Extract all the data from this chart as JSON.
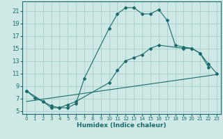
{
  "title": "",
  "xlabel": "Humidex (Indice chaleur)",
  "background_color": "#cde8e5",
  "grid_color": "#aacfcc",
  "line_color": "#1a6b6b",
  "xlim": [
    -0.5,
    23.5
  ],
  "ylim": [
    4.5,
    22.5
  ],
  "xticks": [
    0,
    1,
    2,
    3,
    4,
    5,
    6,
    7,
    8,
    9,
    10,
    11,
    12,
    13,
    14,
    15,
    16,
    17,
    18,
    19,
    20,
    21,
    22,
    23
  ],
  "yticks": [
    5,
    7,
    9,
    11,
    13,
    15,
    17,
    19,
    21
  ],
  "curve1_x": [
    0,
    1,
    2,
    3,
    4,
    5,
    6,
    7,
    10,
    11,
    12,
    13,
    14,
    15,
    16,
    17,
    18,
    19,
    20,
    21,
    22
  ],
  "curve1_y": [
    8.2,
    7.1,
    6.5,
    5.8,
    5.5,
    5.5,
    6.2,
    10.2,
    18.2,
    20.5,
    21.5,
    21.5,
    20.5,
    20.5,
    21.2,
    19.5,
    15.5,
    15.2,
    15.0,
    14.2,
    12.0
  ],
  "curve2_x": [
    0,
    2,
    3,
    4,
    5,
    6,
    10,
    11,
    12,
    13,
    14,
    15,
    16,
    19,
    20,
    21,
    22,
    23
  ],
  "curve2_y": [
    8.2,
    6.5,
    5.5,
    5.5,
    6.0,
    6.5,
    9.5,
    11.5,
    13.0,
    13.5,
    14.0,
    15.0,
    15.5,
    15.0,
    15.0,
    14.2,
    12.5,
    11.0
  ],
  "curve3_x": [
    0,
    23
  ],
  "curve3_y": [
    6.5,
    10.8
  ]
}
